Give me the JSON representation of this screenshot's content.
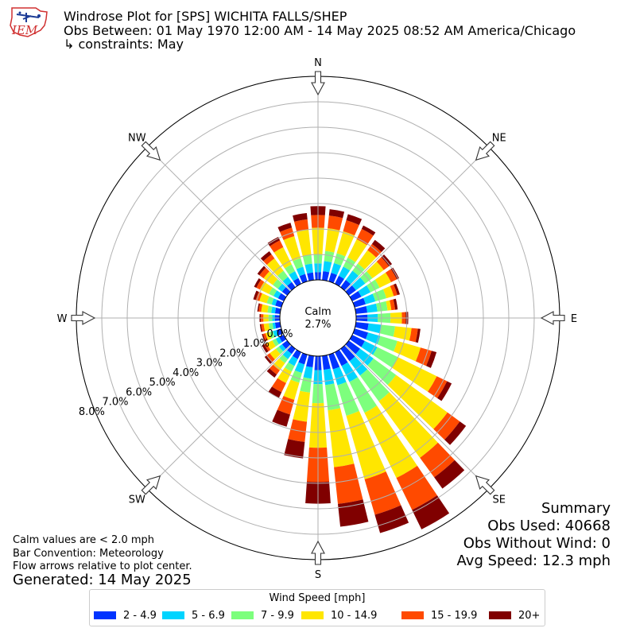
{
  "header": {
    "logo_text": "IEM",
    "title_line1": "Windrose Plot for [SPS] WICHITA FALLS/SHEP",
    "title_line2": "Obs Between: 01 May 1970 12:00 AM - 14 May 2025 08:52 AM America/Chicago",
    "title_line3": "↳ constraints: May"
  },
  "notes": {
    "calm_note": "Calm values are < 2.0 mph",
    "bar_convention": "Bar Convention: Meteorology",
    "flow_arrows": "Flow arrows relative to plot center.",
    "generated": "Generated: 14 May 2025"
  },
  "summary": {
    "title": "Summary",
    "obs_used": "Obs Used: 40668",
    "obs_without_wind": "Obs Without Wind: 0",
    "avg_speed": "Avg Speed: 12.3 mph"
  },
  "colors": {
    "grid": "#b0b0b0",
    "bins": [
      "#0033ff",
      "#00d4ff",
      "#7dff7d",
      "#ffe600",
      "#ff4a00",
      "#800000"
    ]
  },
  "chart_data": {
    "type": "windrose",
    "center_label": "Calm",
    "calm_percent": "2.7%",
    "compass_labels": [
      "N",
      "NE",
      "E",
      "SE",
      "S",
      "SW",
      "W",
      "NW"
    ],
    "radial_tick_labels": [
      "0.0%",
      "1.0%",
      "2.0%",
      "3.0%",
      "4.0%",
      "5.0%",
      "6.0%",
      "7.0%",
      "8.0%"
    ],
    "radial_range": [
      0,
      8.0
    ],
    "legend_title": "Wind Speed [mph]",
    "speed_bins": [
      "2 - 4.9",
      "5 - 6.9",
      "7 - 9.9",
      "10 - 14.9",
      "15 - 19.9",
      "20+"
    ],
    "directions_deg": [
      0,
      10,
      20,
      30,
      40,
      50,
      60,
      70,
      80,
      90,
      100,
      110,
      120,
      130,
      140,
      150,
      160,
      170,
      180,
      190,
      200,
      210,
      220,
      230,
      240,
      250,
      260,
      270,
      280,
      290,
      300,
      310,
      320,
      330,
      340,
      350
    ],
    "cumulative_percent": [
      [
        0.3,
        0.65,
        1.0,
        2.05,
        2.55,
        2.9
      ],
      [
        0.35,
        0.75,
        1.15,
        2.05,
        2.55,
        2.8
      ],
      [
        0.35,
        0.75,
        1.15,
        2.05,
        2.5,
        2.75
      ],
      [
        0.35,
        0.75,
        1.15,
        1.95,
        2.4,
        2.55
      ],
      [
        0.35,
        0.8,
        1.15,
        1.8,
        2.1,
        2.3
      ],
      [
        0.35,
        0.8,
        1.15,
        1.7,
        1.95,
        2.1
      ],
      [
        0.4,
        0.8,
        1.2,
        1.7,
        1.95,
        2.05
      ],
      [
        0.45,
        0.85,
        1.3,
        1.6,
        1.75,
        1.85
      ],
      [
        0.45,
        0.85,
        1.25,
        1.4,
        1.55,
        1.65
      ],
      [
        0.45,
        0.85,
        1.35,
        1.8,
        1.95,
        2.05
      ],
      [
        0.5,
        1.0,
        1.55,
        2.2,
        2.45,
        2.55
      ],
      [
        0.55,
        1.05,
        1.75,
        2.7,
        3.15,
        3.35
      ],
      [
        0.55,
        1.1,
        2.0,
        3.7,
        4.15,
        4.35
      ],
      [
        0.55,
        1.2,
        2.3,
        4.8,
        5.4,
        5.7
      ],
      [
        0.6,
        1.3,
        2.55,
        5.3,
        6.25,
        6.8
      ],
      [
        0.6,
        1.3,
        2.65,
        5.5,
        6.9,
        7.75
      ],
      [
        0.6,
        1.25,
        2.5,
        5.1,
        6.55,
        7.3
      ],
      [
        0.55,
        1.15,
        2.15,
        4.4,
        5.85,
        6.75
      ],
      [
        0.55,
        1.1,
        1.85,
        3.6,
        4.95,
        5.8
      ],
      [
        0.45,
        0.9,
        1.45,
        2.6,
        3.4,
        4.05
      ],
      [
        0.4,
        0.75,
        1.15,
        1.85,
        2.45,
        2.95
      ],
      [
        0.3,
        0.6,
        0.85,
        1.35,
        1.75,
        2.0
      ],
      [
        0.25,
        0.5,
        0.7,
        1.05,
        1.25,
        1.4
      ],
      [
        0.25,
        0.4,
        0.55,
        0.85,
        1.0,
        1.1
      ],
      [
        0.2,
        0.35,
        0.5,
        0.75,
        0.85,
        0.95
      ],
      [
        0.2,
        0.35,
        0.5,
        0.65,
        0.75,
        0.8
      ],
      [
        0.2,
        0.3,
        0.45,
        0.65,
        0.75,
        0.8
      ],
      [
        0.2,
        0.3,
        0.45,
        0.65,
        0.75,
        0.8
      ],
      [
        0.2,
        0.35,
        0.5,
        0.75,
        0.85,
        0.9
      ],
      [
        0.25,
        0.4,
        0.6,
        0.9,
        1.05,
        1.15
      ],
      [
        0.25,
        0.45,
        0.65,
        1.05,
        1.2,
        1.3
      ],
      [
        0.25,
        0.45,
        0.7,
        1.15,
        1.35,
        1.45
      ],
      [
        0.25,
        0.5,
        0.8,
        1.4,
        1.6,
        1.75
      ],
      [
        0.25,
        0.55,
        0.85,
        1.6,
        1.9,
        2.05
      ],
      [
        0.3,
        0.6,
        0.95,
        1.85,
        2.2,
        2.4
      ],
      [
        0.3,
        0.65,
        1.0,
        2.0,
        2.4,
        2.65
      ]
    ]
  }
}
